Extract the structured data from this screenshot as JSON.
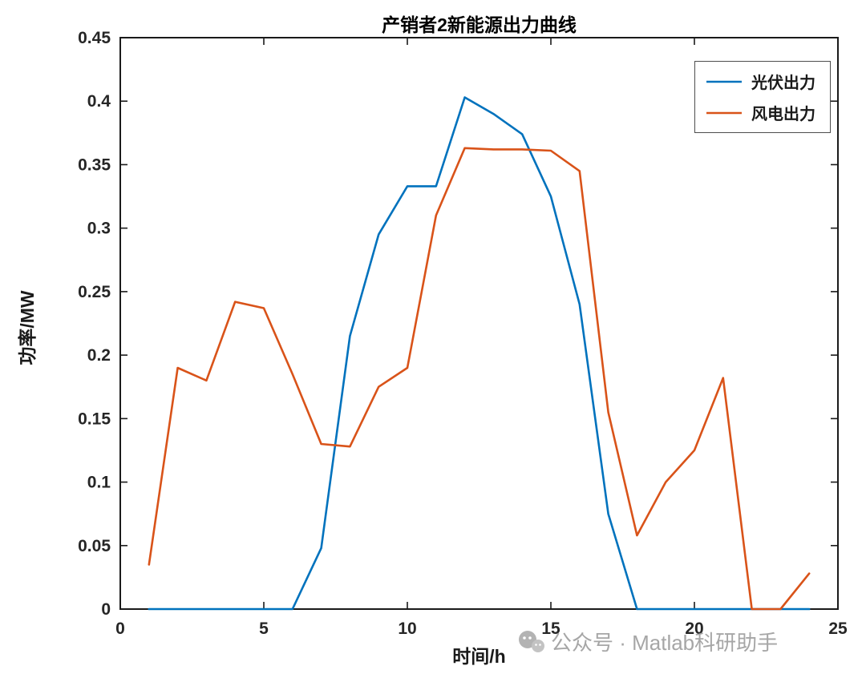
{
  "chart_data": {
    "type": "line",
    "title": "产销者2新能源出力曲线",
    "xlabel": "时间/h",
    "ylabel": "功率/MW",
    "xlim": [
      0,
      25
    ],
    "ylim": [
      0,
      0.45
    ],
    "grid": false,
    "legend_position": "top-right",
    "xticks": [
      0,
      5,
      10,
      15,
      20,
      25
    ],
    "xtick_labels": [
      "0",
      "5",
      "10",
      "15",
      "20",
      "25"
    ],
    "yticks": [
      0,
      0.05,
      0.1,
      0.15,
      0.2,
      0.25,
      0.3,
      0.35,
      0.4,
      0.45
    ],
    "ytick_labels": [
      "0",
      "0.05",
      "0.1",
      "0.15",
      "0.2",
      "0.25",
      "0.3",
      "0.35",
      "0.4",
      "0.45"
    ],
    "x": [
      1,
      2,
      3,
      4,
      5,
      6,
      7,
      8,
      9,
      10,
      11,
      12,
      13,
      14,
      15,
      16,
      17,
      18,
      19,
      20,
      21,
      22,
      23,
      24
    ],
    "series": [
      {
        "name": "光伏出力",
        "color": "#0072BD",
        "values": [
          0,
          0,
          0,
          0,
          0,
          0,
          0.048,
          0.215,
          0.295,
          0.333,
          0.333,
          0.403,
          0.39,
          0.374,
          0.325,
          0.24,
          0.075,
          0,
          0,
          0,
          0,
          0,
          0,
          0
        ]
      },
      {
        "name": "风电出力",
        "color": "#D95319",
        "values": [
          0.035,
          0.19,
          0.18,
          0.242,
          0.237,
          0.185,
          0.13,
          0.128,
          0.175,
          0.19,
          0.31,
          0.363,
          0.362,
          0.362,
          0.361,
          0.345,
          0.155,
          0.058,
          0.1,
          0.125,
          0.182,
          0,
          0,
          0.028
        ]
      }
    ]
  },
  "watermark": {
    "text": "公众号 · Matlab科研助手"
  }
}
